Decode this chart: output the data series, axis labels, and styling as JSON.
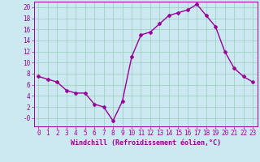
{
  "x": [
    0,
    1,
    2,
    3,
    4,
    5,
    6,
    7,
    8,
    9,
    10,
    11,
    12,
    13,
    14,
    15,
    16,
    17,
    18,
    19,
    20,
    21,
    22,
    23
  ],
  "y": [
    7.5,
    7.0,
    6.5,
    5.0,
    4.5,
    4.5,
    2.5,
    2.0,
    -0.5,
    3.0,
    11.0,
    15.0,
    15.5,
    17.0,
    18.5,
    19.0,
    19.5,
    20.5,
    18.5,
    16.5,
    12.0,
    9.0,
    7.5,
    6.5
  ],
  "line_color": "#990099",
  "marker": "D",
  "marker_size": 2,
  "bg_color": "#cce8f0",
  "grid_color": "#99ccbb",
  "xlabel": "Windchill (Refroidissement éolien,°C)",
  "xlabel_color": "#990099",
  "tick_color": "#990099",
  "ylim": [
    -1.5,
    21
  ],
  "xlim": [
    -0.5,
    23.5
  ],
  "yticks": [
    0,
    2,
    4,
    6,
    8,
    10,
    12,
    14,
    16,
    18,
    20
  ],
  "ytick_labels": [
    "-0",
    "2",
    "4",
    "6",
    "8",
    "10",
    "12",
    "14",
    "16",
    "18",
    "20"
  ],
  "xticks": [
    0,
    1,
    2,
    3,
    4,
    5,
    6,
    7,
    8,
    9,
    10,
    11,
    12,
    13,
    14,
    15,
    16,
    17,
    18,
    19,
    20,
    21,
    22,
    23
  ],
  "line_width": 1.0,
  "tick_fontsize": 5.5,
  "xlabel_fontsize": 6.0
}
